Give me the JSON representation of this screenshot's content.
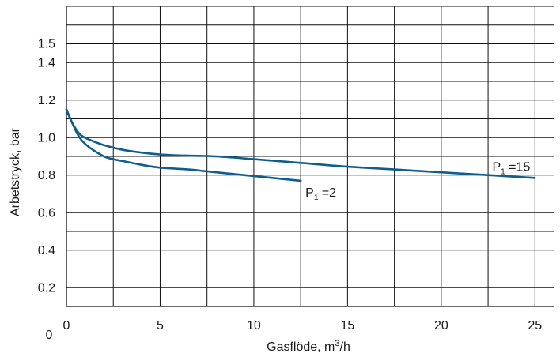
{
  "chart_data": {
    "type": "line",
    "xlabel": "Gasflöde, m³/h",
    "xlabel_parts": {
      "main": "Gasflöde, m",
      "sup": "3",
      "tail": "/h"
    },
    "ylabel": "Arbetstryck, bar",
    "xlim": [
      0,
      26
    ],
    "ylim": [
      0.1,
      1.7
    ],
    "x_ticks": [
      0,
      5,
      10,
      15,
      20,
      25
    ],
    "y_ticks": [
      0.2,
      0.4,
      0.6,
      0.8,
      1.0,
      1.2,
      1.4,
      1.5
    ],
    "y_tick_labels": [
      "0.2",
      "0.4",
      "0.6",
      "0.8",
      "1.0",
      "1.2",
      "1.4",
      "1.5"
    ],
    "origin_label": "0",
    "grid": true,
    "line_color": "#0e5d8f",
    "series": [
      {
        "name": "P1 =15",
        "label_parts": {
          "main": "P",
          "sub": "1",
          "tail": " =15"
        },
        "x": [
          0,
          0.3,
          0.7,
          1.2,
          2,
          3,
          4,
          5,
          6,
          8,
          10,
          12.5,
          15,
          17.5,
          20,
          22.5,
          25
        ],
        "y": [
          1.15,
          1.08,
          1.02,
          0.99,
          0.96,
          0.935,
          0.92,
          0.91,
          0.905,
          0.9,
          0.885,
          0.865,
          0.845,
          0.83,
          0.815,
          0.8,
          0.785
        ]
      },
      {
        "name": "P1 =2",
        "label_parts": {
          "main": "P",
          "sub": "1",
          "tail": " =2"
        },
        "x": [
          0,
          0.3,
          0.7,
          1.2,
          2,
          2.5,
          3,
          4,
          5,
          6.5,
          8,
          10,
          12.5
        ],
        "y": [
          1.15,
          1.08,
          1.0,
          0.95,
          0.9,
          0.885,
          0.875,
          0.855,
          0.84,
          0.83,
          0.815,
          0.795,
          0.77
        ]
      }
    ]
  }
}
